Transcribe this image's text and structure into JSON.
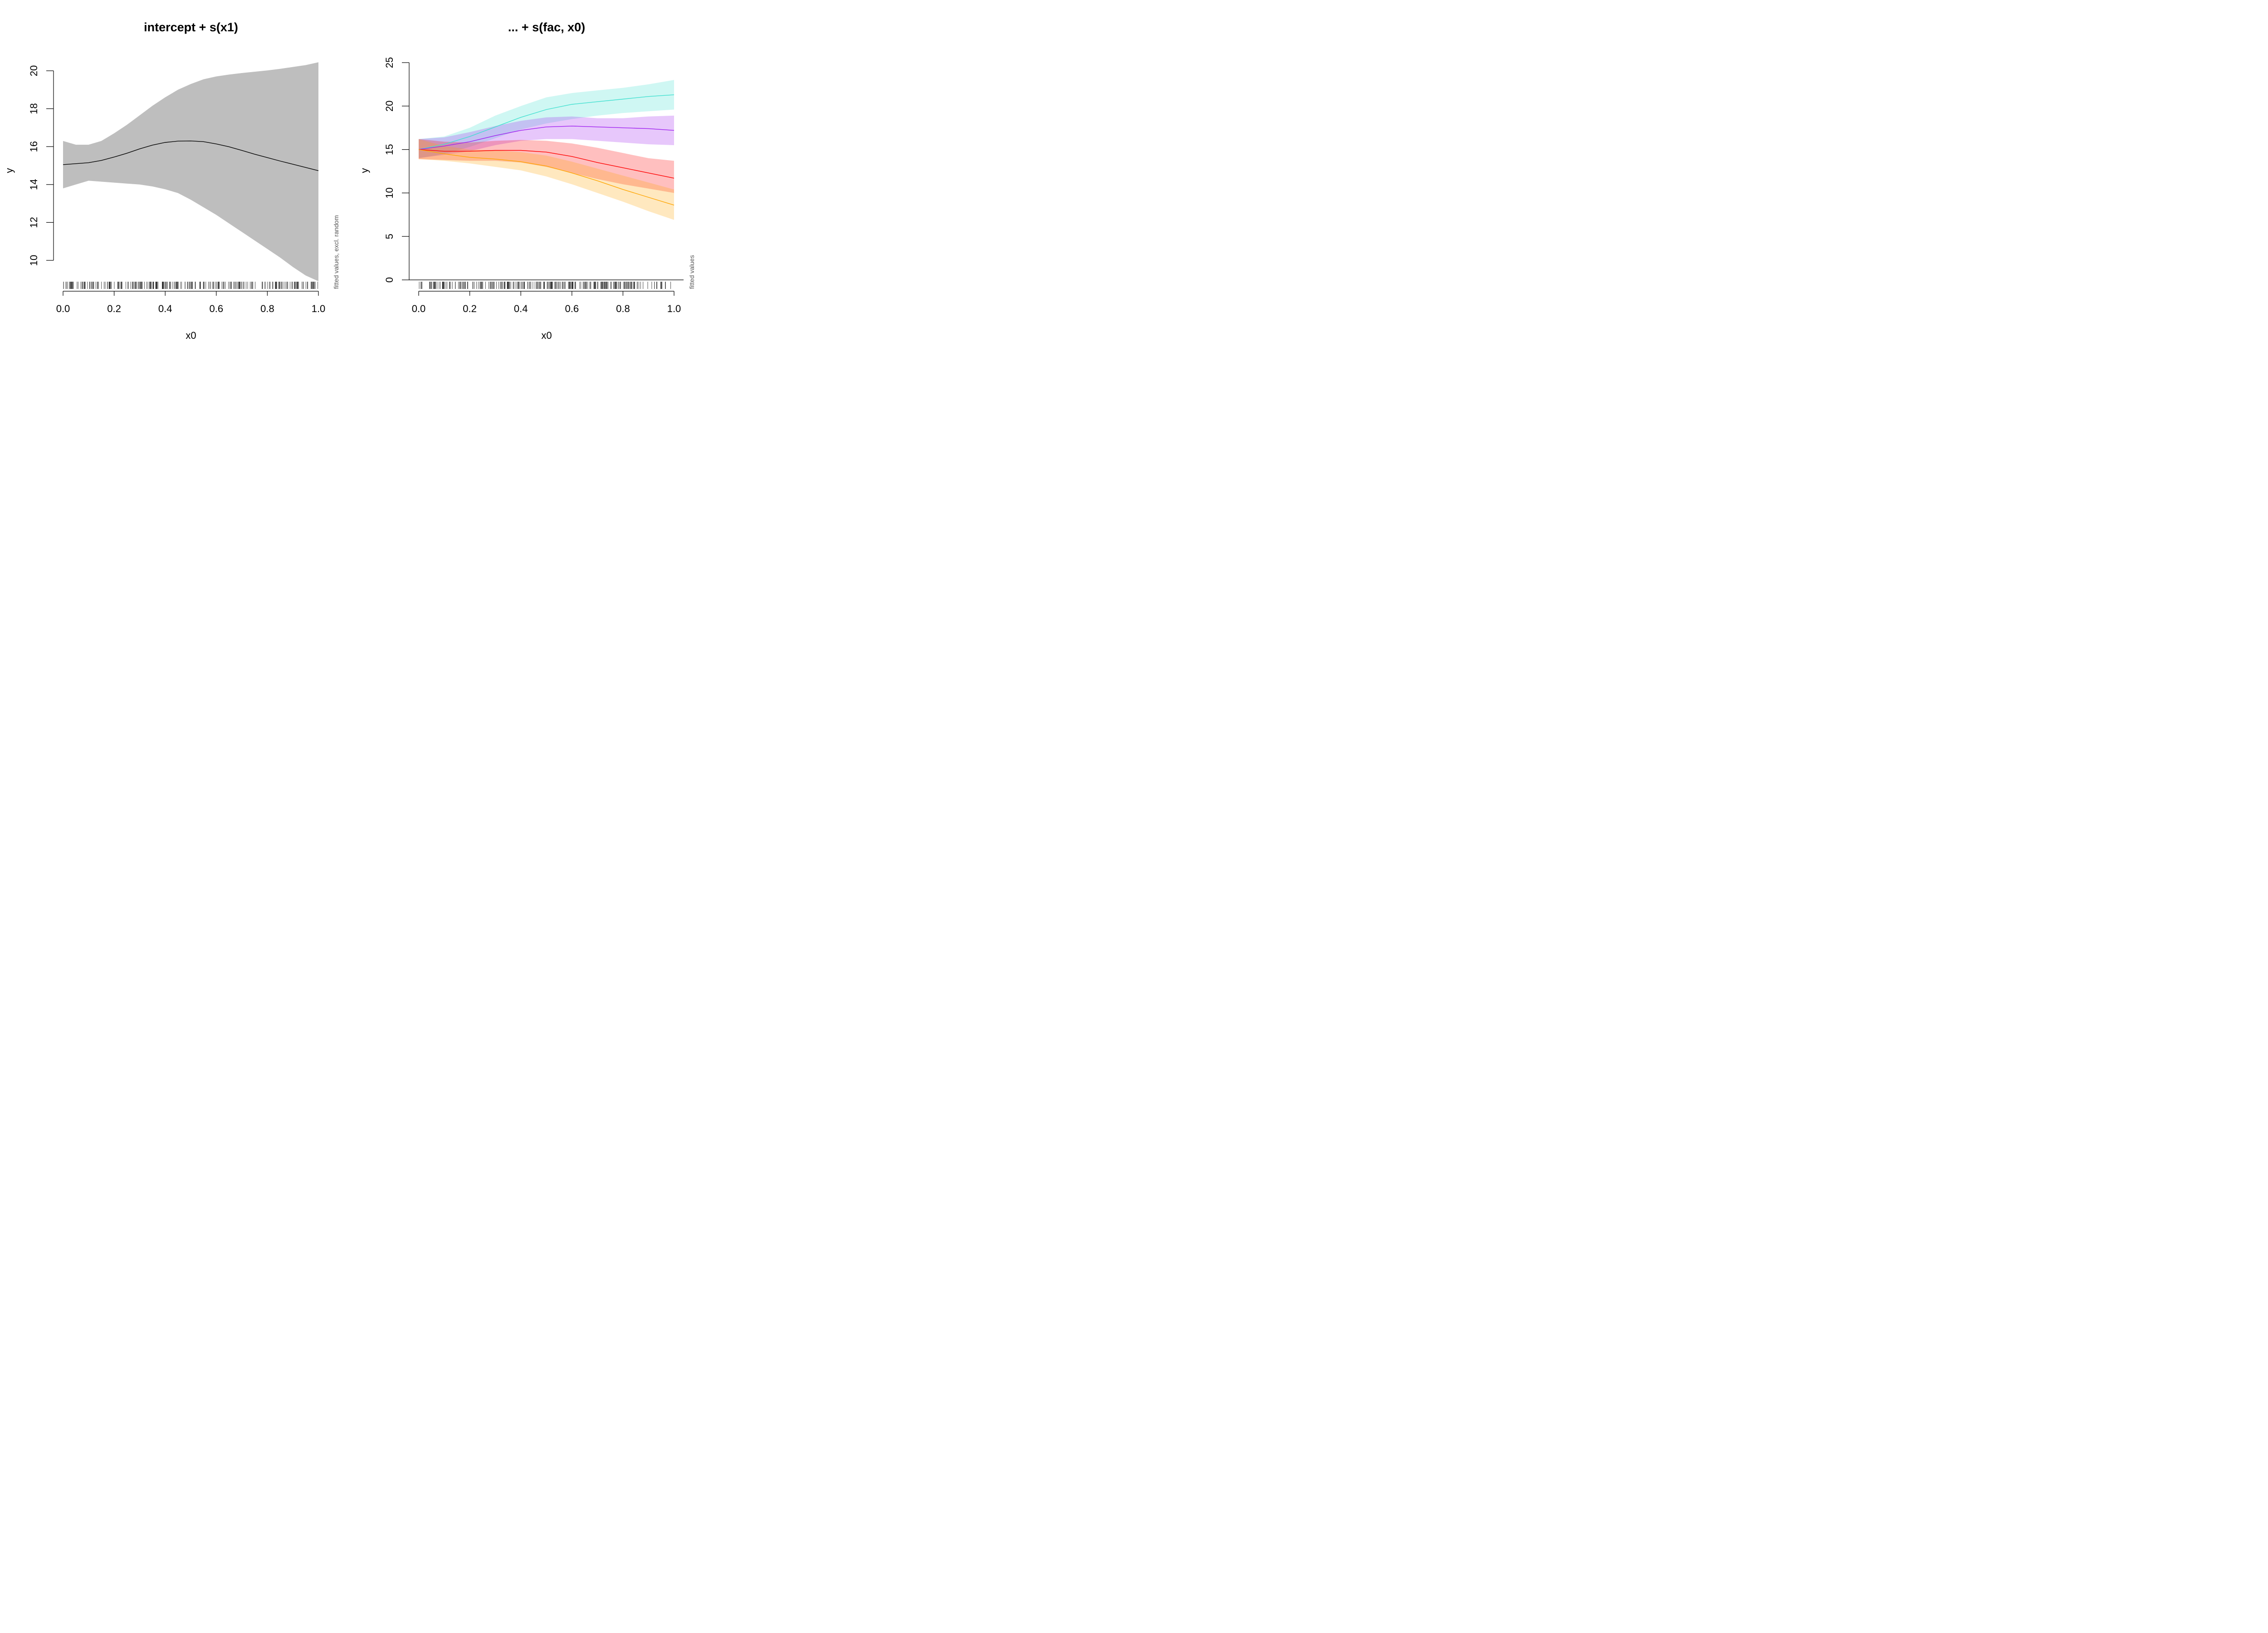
{
  "chart_data": [
    {
      "type": "line",
      "title": "intercept + s(x1)",
      "xlabel": "x0",
      "ylabel": "y",
      "note": "fitted values, excl. random",
      "xlim": [
        0,
        1
      ],
      "ylim": [
        10,
        20
      ],
      "xticks": [
        0.0,
        0.2,
        0.4,
        0.6,
        0.8,
        1.0
      ],
      "xtick_labels": [
        "0.0",
        "0.2",
        "0.4",
        "0.6",
        "0.8",
        "1.0"
      ],
      "yticks": [
        10,
        12,
        14,
        16,
        18,
        20
      ],
      "ytick_labels": [
        "10",
        "12",
        "14",
        "16",
        "18",
        "20"
      ],
      "grid": false,
      "legend": "none",
      "series": [
        {
          "color": "#000000",
          "band_color": "#bebebe",
          "band_opacity": 1,
          "x": [
            0,
            0.05,
            0.1,
            0.15,
            0.2,
            0.25,
            0.3,
            0.35,
            0.4,
            0.45,
            0.5,
            0.55,
            0.6,
            0.65,
            0.7,
            0.75,
            0.8,
            0.85,
            0.9,
            0.95,
            1.0
          ],
          "fit": [
            15.05,
            15.1,
            15.15,
            15.27,
            15.45,
            15.65,
            15.88,
            16.08,
            16.22,
            16.29,
            16.3,
            16.26,
            16.14,
            15.99,
            15.8,
            15.6,
            15.42,
            15.24,
            15.07,
            14.9,
            14.73
          ],
          "lower": [
            13.8,
            14.0,
            14.2,
            14.15,
            14.1,
            14.05,
            14.0,
            13.9,
            13.75,
            13.55,
            13.2,
            12.8,
            12.4,
            11.95,
            11.5,
            11.05,
            10.6,
            10.15,
            9.65,
            9.2,
            8.9
          ],
          "upper": [
            16.3,
            16.1,
            16.1,
            16.3,
            16.7,
            17.15,
            17.65,
            18.15,
            18.6,
            19.0,
            19.3,
            19.55,
            19.7,
            19.8,
            19.88,
            19.95,
            20.02,
            20.1,
            20.2,
            20.3,
            20.45
          ]
        }
      ]
    },
    {
      "type": "line",
      "title": "... + s(fac, x0)",
      "xlabel": "x0",
      "ylabel": "y",
      "note": "fitted values",
      "xlim": [
        0,
        1
      ],
      "ylim": [
        0,
        25
      ],
      "xticks": [
        0.0,
        0.2,
        0.4,
        0.6,
        0.8,
        1.0
      ],
      "xtick_labels": [
        "0.0",
        "0.2",
        "0.4",
        "0.6",
        "0.8",
        "1.0"
      ],
      "yticks": [
        0,
        5,
        10,
        15,
        20,
        25
      ],
      "ytick_labels": [
        "0",
        "5",
        "10",
        "15",
        "20",
        "25"
      ],
      "grid": false,
      "legend": "none",
      "series": [
        {
          "color": "#40e0d0",
          "band_color": "#40e0d0",
          "band_opacity": 0.25,
          "x": [
            0,
            0.1,
            0.2,
            0.3,
            0.4,
            0.5,
            0.6,
            0.7,
            0.8,
            0.9,
            1.0
          ],
          "fit": [
            15.0,
            15.6,
            16.5,
            17.6,
            18.7,
            19.6,
            20.2,
            20.5,
            20.8,
            21.1,
            21.3
          ],
          "lower": [
            14.0,
            14.5,
            15.3,
            16.3,
            17.3,
            18.0,
            18.5,
            18.9,
            19.2,
            19.4,
            19.6
          ],
          "upper": [
            16.2,
            16.5,
            17.5,
            18.9,
            20.0,
            21.0,
            21.5,
            21.8,
            22.1,
            22.5,
            23.0
          ]
        },
        {
          "color": "#a020f0",
          "band_color": "#a020f0",
          "band_opacity": 0.25,
          "x": [
            0,
            0.1,
            0.2,
            0.3,
            0.4,
            0.5,
            0.6,
            0.7,
            0.8,
            0.9,
            1.0
          ],
          "fit": [
            15.0,
            15.4,
            15.9,
            16.6,
            17.2,
            17.6,
            17.7,
            17.6,
            17.5,
            17.4,
            17.2
          ],
          "lower": [
            14.0,
            14.4,
            14.8,
            15.5,
            16.0,
            16.2,
            16.2,
            16.0,
            15.8,
            15.6,
            15.5
          ],
          "upper": [
            16.2,
            16.4,
            17.0,
            17.7,
            18.3,
            18.7,
            18.8,
            18.6,
            18.6,
            18.8,
            18.9
          ]
        },
        {
          "color": "#ff0000",
          "band_color": "#ff0000",
          "band_opacity": 0.25,
          "x": [
            0,
            0.1,
            0.2,
            0.3,
            0.4,
            0.5,
            0.6,
            0.7,
            0.8,
            0.9,
            1.0
          ],
          "fit": [
            15.0,
            14.8,
            14.8,
            14.9,
            14.9,
            14.7,
            14.2,
            13.5,
            12.9,
            12.3,
            11.7
          ],
          "lower": [
            13.9,
            13.8,
            13.7,
            13.7,
            13.5,
            13.0,
            12.3,
            11.6,
            11.0,
            10.5,
            10.0
          ],
          "upper": [
            16.2,
            15.9,
            15.8,
            16.0,
            16.1,
            16.0,
            15.7,
            15.2,
            14.6,
            14.0,
            13.7
          ]
        },
        {
          "color": "#ffa500",
          "band_color": "#ffa500",
          "band_opacity": 0.25,
          "x": [
            0,
            0.1,
            0.2,
            0.3,
            0.4,
            0.5,
            0.6,
            0.7,
            0.8,
            0.9,
            1.0
          ],
          "fit": [
            15.0,
            14.5,
            14.1,
            13.9,
            13.6,
            13.1,
            12.3,
            11.4,
            10.4,
            9.5,
            8.6
          ],
          "lower": [
            13.9,
            13.7,
            13.4,
            13.0,
            12.6,
            11.9,
            11.0,
            10.0,
            9.0,
            7.9,
            6.9
          ],
          "upper": [
            16.2,
            15.4,
            15.0,
            14.9,
            14.7,
            14.3,
            13.6,
            12.8,
            12.0,
            11.2,
            10.4
          ]
        }
      ]
    }
  ]
}
